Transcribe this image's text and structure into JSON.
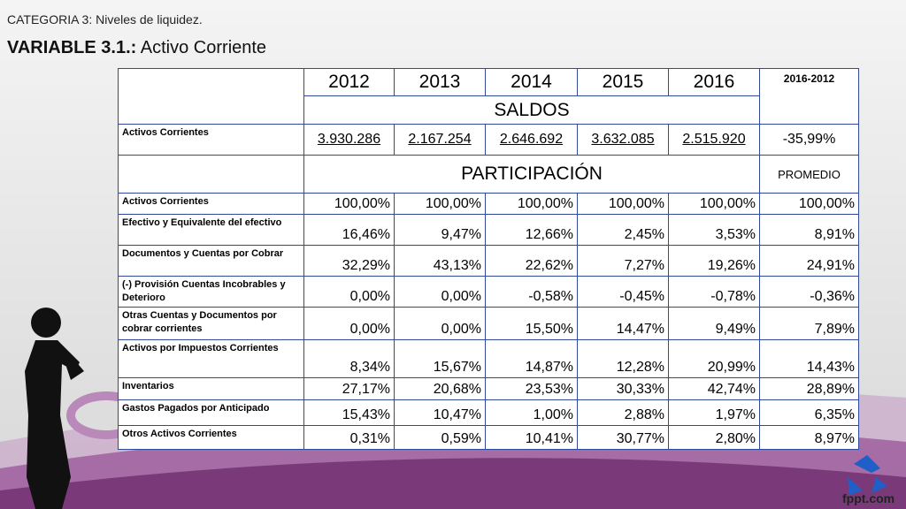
{
  "header": {
    "category": "CATEGORIA 3: Niveles de liquidez.",
    "title_bold": "VARIABLE 3.1.:",
    "title_rest": "Activo Corriente"
  },
  "table": {
    "years": [
      "2012",
      "2013",
      "2014",
      "2015",
      "2016"
    ],
    "change_header": "2016-2012",
    "saldos_label": "SALDOS",
    "saldos_row": {
      "label": "Activos Corrientes",
      "values": [
        "3.930.286",
        "2.167.254",
        "2.646.692",
        "3.632.085",
        "2.515.920"
      ],
      "change": "-35,99%"
    },
    "participacion_label": "PARTICIPACIÓN",
    "promedio_label": "PROMEDIO",
    "rows": [
      {
        "label": "Activos Corrientes",
        "values": [
          "100,00%",
          "100,00%",
          "100,00%",
          "100,00%",
          "100,00%",
          "100,00%"
        ]
      },
      {
        "label": "Efectivo y Equivalente del efectivo",
        "values": [
          "16,46%",
          "9,47%",
          "12,66%",
          "2,45%",
          "3,53%",
          "8,91%"
        ]
      },
      {
        "label": "Documentos y Cuentas por Cobrar",
        "values": [
          "32,29%",
          "43,13%",
          "22,62%",
          "7,27%",
          "19,26%",
          "24,91%"
        ]
      },
      {
        "label": "(-) Provisión Cuentas Incobrables y Deterioro",
        "values": [
          "0,00%",
          "0,00%",
          "-0,58%",
          "-0,45%",
          "-0,78%",
          "-0,36%"
        ]
      },
      {
        "label": "Otras Cuentas y Documentos por cobrar corrientes",
        "values": [
          "0,00%",
          "0,00%",
          "15,50%",
          "14,47%",
          "9,49%",
          "7,89%"
        ]
      },
      {
        "label": "Activos por Impuestos Corrientes",
        "values": [
          "8,34%",
          "15,67%",
          "14,87%",
          "12,28%",
          "20,99%",
          "14,43%"
        ]
      },
      {
        "label": "Inventarios",
        "values": [
          "27,17%",
          "20,68%",
          "23,53%",
          "30,33%",
          "42,74%",
          "28,89%"
        ]
      },
      {
        "label": "Gastos Pagados por Anticipado",
        "values": [
          "15,43%",
          "10,47%",
          "1,00%",
          "2,88%",
          "1,97%",
          "6,35%"
        ]
      },
      {
        "label": "Otros Activos Corrientes",
        "values": [
          "0,31%",
          "0,59%",
          "10,41%",
          "30,77%",
          "2,80%",
          "8,97%"
        ]
      }
    ]
  },
  "logo": {
    "text": "fppt.com"
  }
}
